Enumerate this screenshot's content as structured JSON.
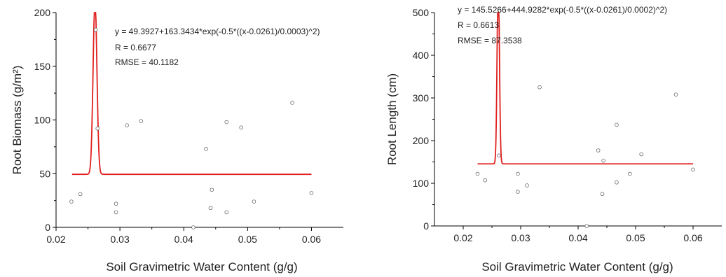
{
  "colors": {
    "fit_line": "#e02020",
    "point_stroke": "#666666",
    "axis": "#000000"
  },
  "chart_data": [
    {
      "type": "scatter",
      "xlabel": "Soil Gravimetric  Water Content (g/g)",
      "ylabel": "Root Biomass (g/m²)",
      "xlim": [
        0.02,
        0.065
      ],
      "ylim": [
        0,
        200
      ],
      "xticks": [
        0.02,
        0.03,
        0.04,
        0.05,
        0.06
      ],
      "xtick_labels": [
        "0.02",
        "0.03",
        "0.04",
        "0.05",
        "0.06"
      ],
      "yticks": [
        0,
        50,
        100,
        150,
        200
      ],
      "ytick_labels": [
        "0",
        "50",
        "100",
        "150",
        "200"
      ],
      "fit": {
        "y0": 49.3927,
        "a": 163.3434,
        "xc": 0.0261,
        "w": 0.0003,
        "x_from": 0.0225,
        "x_to": 0.06
      },
      "annotations": [
        "y = 49.3927+163.3434*exp(-0.5*((x-0.0261)/0.0003)^2)",
        "R = 0.6677",
        "RMSE = 40.1182"
      ],
      "points": [
        {
          "x": 0.0224,
          "y": 24
        },
        {
          "x": 0.0238,
          "y": 31
        },
        {
          "x": 0.0262,
          "y": 184
        },
        {
          "x": 0.0265,
          "y": 92
        },
        {
          "x": 0.0294,
          "y": 22
        },
        {
          "x": 0.0294,
          "y": 14
        },
        {
          "x": 0.0311,
          "y": 95
        },
        {
          "x": 0.0333,
          "y": 99
        },
        {
          "x": 0.0415,
          "y": 0
        },
        {
          "x": 0.0435,
          "y": 73
        },
        {
          "x": 0.0442,
          "y": 18
        },
        {
          "x": 0.0444,
          "y": 35
        },
        {
          "x": 0.0467,
          "y": 98
        },
        {
          "x": 0.0467,
          "y": 14
        },
        {
          "x": 0.049,
          "y": 93
        },
        {
          "x": 0.051,
          "y": 24
        },
        {
          "x": 0.057,
          "y": 116
        },
        {
          "x": 0.06,
          "y": 32
        }
      ]
    },
    {
      "type": "scatter",
      "xlabel": "Soil Gravimetric  Water Content (g/g)",
      "ylabel": "Root Length (cm)",
      "xlim": [
        0.015,
        0.065
      ],
      "ylim": [
        0,
        500
      ],
      "xticks": [
        0.02,
        0.03,
        0.04,
        0.05,
        0.06
      ],
      "xtick_labels": [
        "0.02",
        "0.03",
        "0.04",
        "0.05",
        "0.06"
      ],
      "yticks": [
        0,
        100,
        200,
        300,
        400,
        500
      ],
      "ytick_labels": [
        "0",
        "100",
        "200",
        "300",
        "400",
        "500"
      ],
      "fit": {
        "y0": 145.5266,
        "a": 444.9282,
        "xc": 0.0261,
        "w": 0.0002,
        "x_from": 0.0225,
        "x_to": 0.06
      },
      "annotations": [
        "y = 145.5266+444.9282*exp(-0.5*((x-0.0261)/0.0002)^2)",
        "R = 0.6613",
        "RMSE = 87.3538"
      ],
      "points": [
        {
          "x": 0.0225,
          "y": 122
        },
        {
          "x": 0.0238,
          "y": 107
        },
        {
          "x": 0.0262,
          "y": 165
        },
        {
          "x": 0.0295,
          "y": 122
        },
        {
          "x": 0.0295,
          "y": 80
        },
        {
          "x": 0.0311,
          "y": 95
        },
        {
          "x": 0.0333,
          "y": 325
        },
        {
          "x": 0.0415,
          "y": 0
        },
        {
          "x": 0.0435,
          "y": 177
        },
        {
          "x": 0.0442,
          "y": 75
        },
        {
          "x": 0.0444,
          "y": 153
        },
        {
          "x": 0.0467,
          "y": 237
        },
        {
          "x": 0.0467,
          "y": 102
        },
        {
          "x": 0.049,
          "y": 122
        },
        {
          "x": 0.051,
          "y": 168
        },
        {
          "x": 0.057,
          "y": 308
        },
        {
          "x": 0.06,
          "y": 132
        }
      ]
    }
  ]
}
